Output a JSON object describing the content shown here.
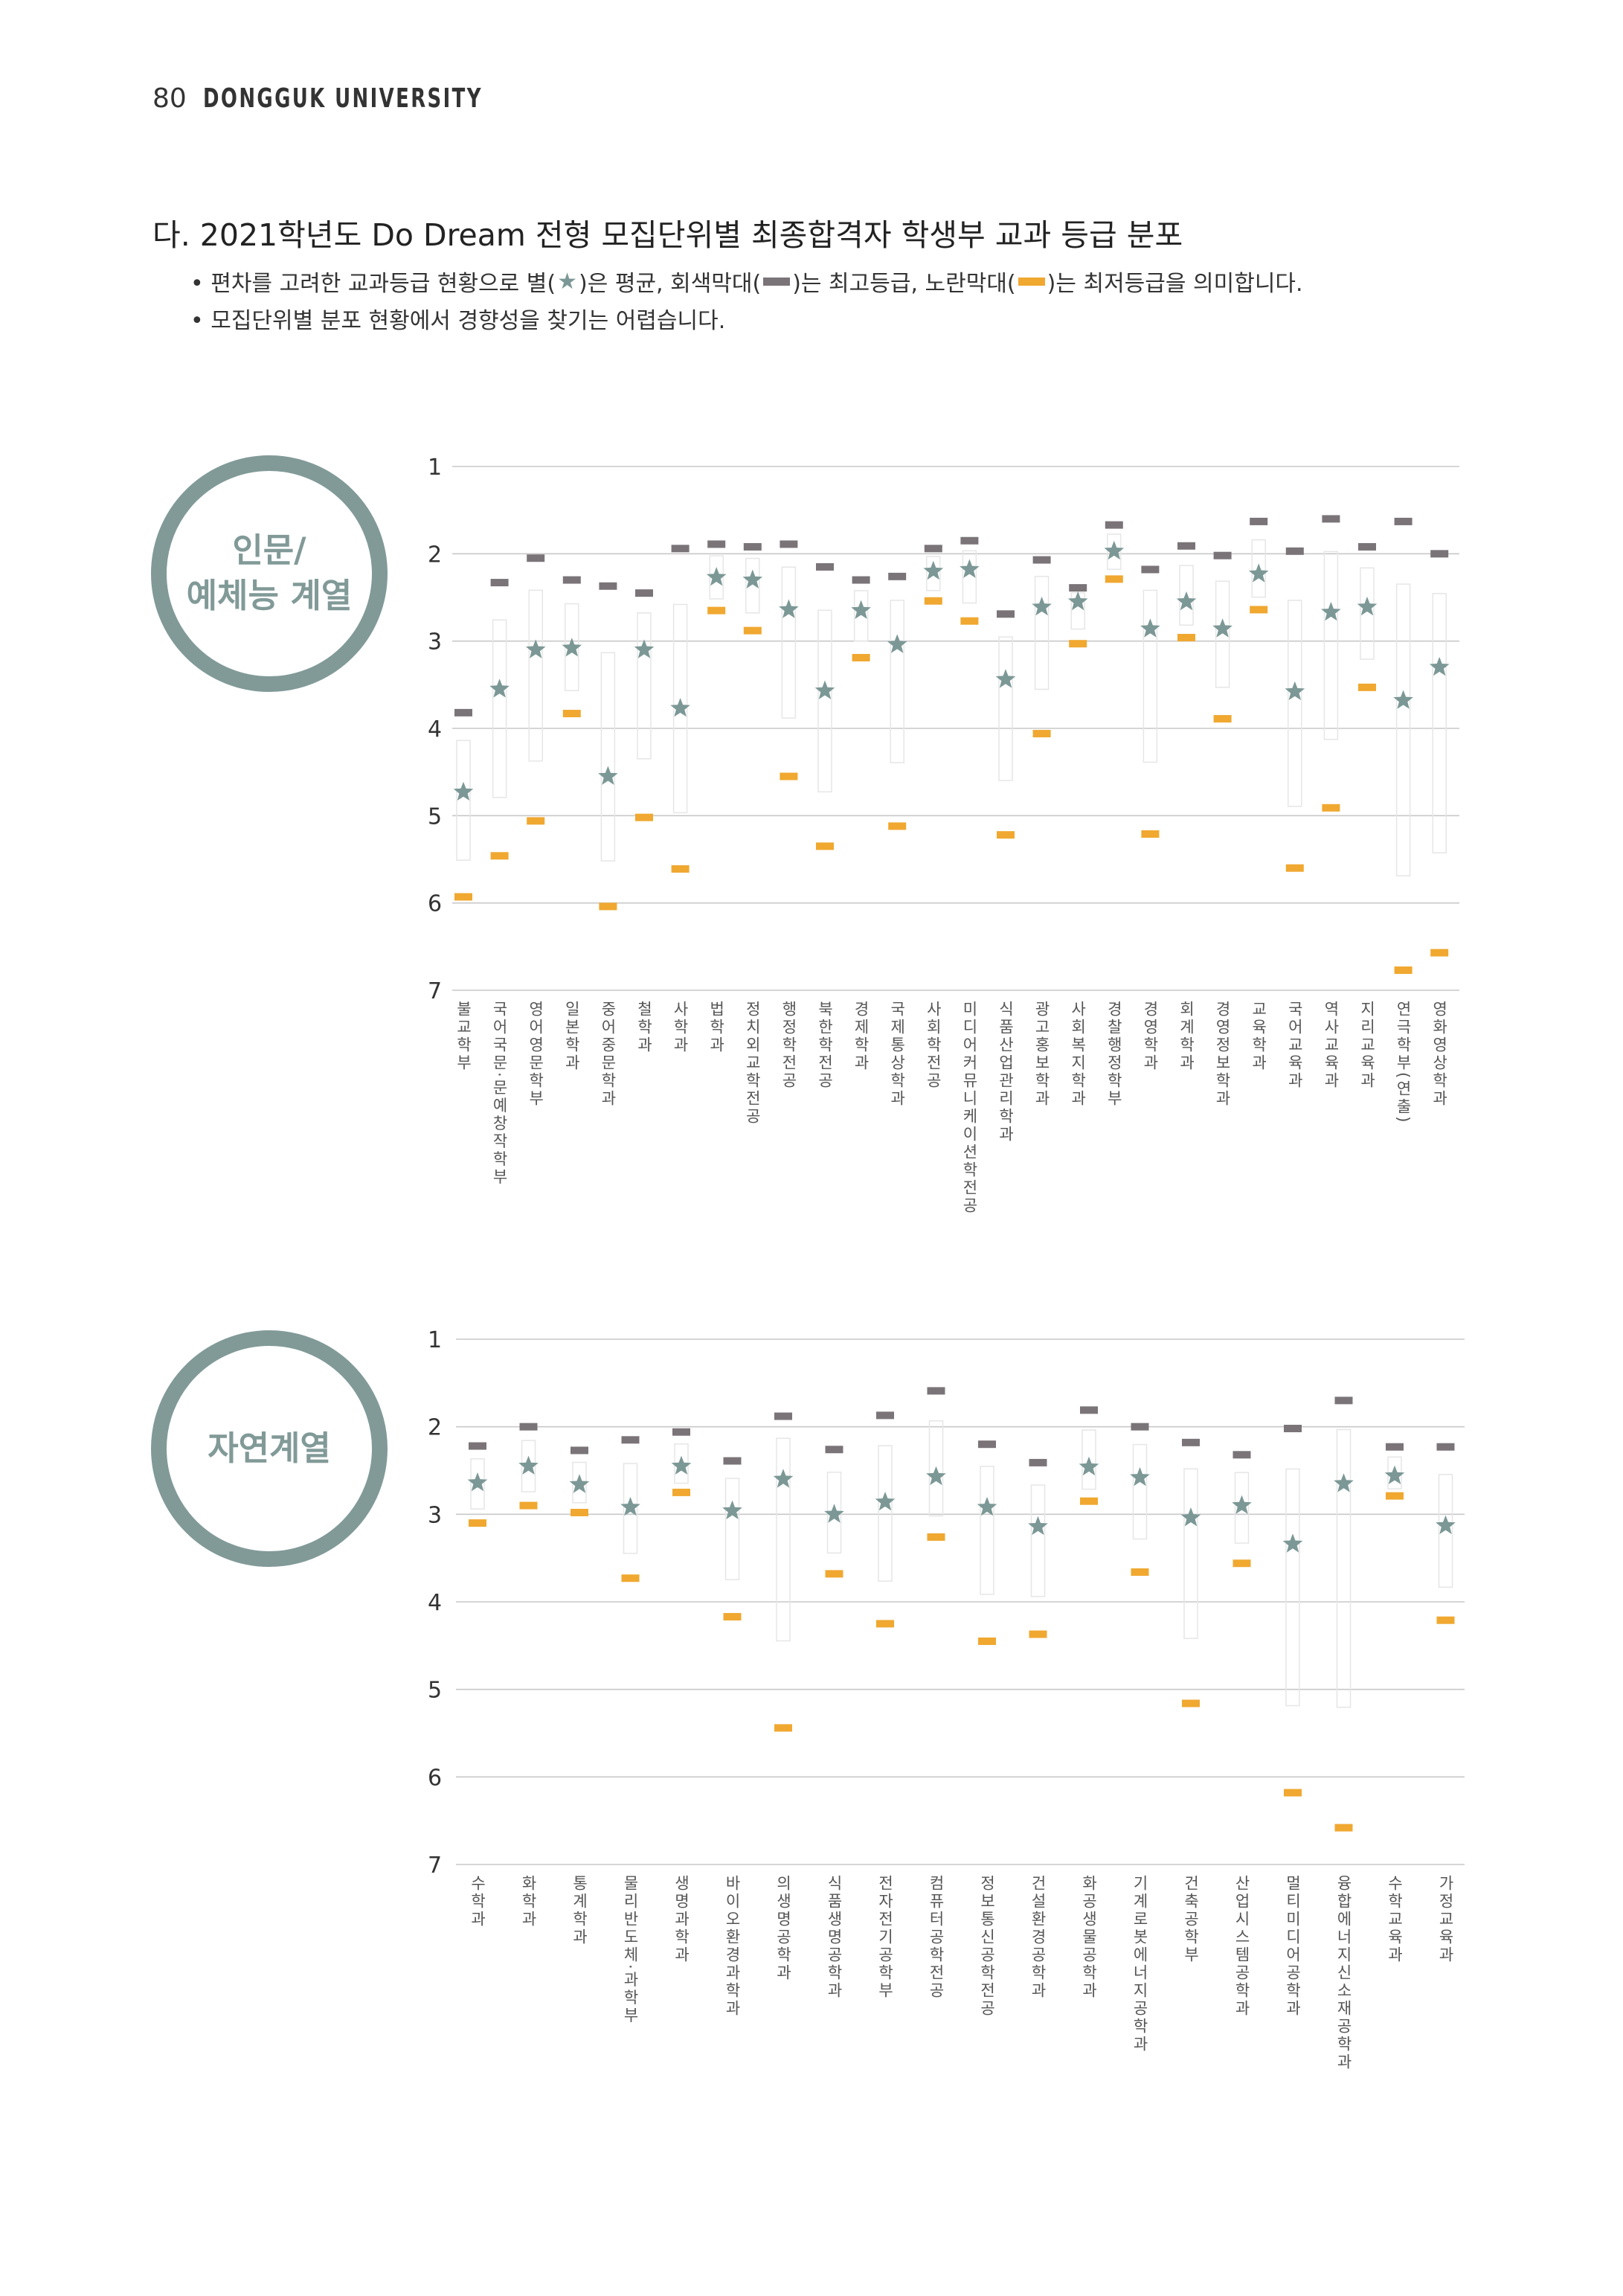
{
  "header": {
    "page_number": "80",
    "university": "DONGGUK UNIVERSITY"
  },
  "section_title": "다. 2021학년도 Do Dream 전형 모집단위별 최종합격자 학생부 교과 등급 분포",
  "bullets": {
    "b1_p1": "• 편차를 고려한 교과등급 현황으로 별(",
    "b1_p2": ")은 평균, 회색막대(",
    "b1_p3": ")는 최고등급, 노란막대(",
    "b1_p4": ")는 최저등급을 의미합니다.",
    "b2": "• 모집단위별 분포 현황에서 경향성을 찾기는 어렵습니다."
  },
  "colors": {
    "star": "#7c9896",
    "best_bar": "#7a7478",
    "worst_bar": "#f0a830",
    "circle": "#819a98",
    "grid": "#c8c8c8"
  },
  "icons": [
    "star-icon",
    "gray-bar-icon",
    "yellow-bar-icon"
  ],
  "chart_data": [
    {
      "type": "scatter",
      "label": "인문/ 예체능 계열",
      "label_lines": [
        "인문/",
        "예체능 계열"
      ],
      "yticks": [
        1,
        2,
        3,
        4,
        5,
        6,
        7
      ],
      "ylim": [
        1,
        7
      ],
      "y_inverted": true,
      "grid": true,
      "categories": [
        "불교학부",
        "국어국문·문예창작학부",
        "영어영문학부",
        "일본학과",
        "중어중문학과",
        "철학과",
        "사학과",
        "법학과",
        "정치외교학전공",
        "행정학전공",
        "북한학전공",
        "경제학과",
        "국제통상학과",
        "사회학전공",
        "미디어커뮤니케이션학전공",
        "식품산업관리학과",
        "광고홍보학과",
        "사회복지학과",
        "경찰행정학부",
        "경영학과",
        "회계학과",
        "경영정보학과",
        "교육학과",
        "국어교육과",
        "역사교육과",
        "지리교육과",
        "연극학부(연출)",
        "영화영상학과"
      ],
      "series": [
        {
          "name": "최고등급",
          "values": [
            3.82,
            2.33,
            2.05,
            2.3,
            2.37,
            2.45,
            1.94,
            1.89,
            1.92,
            1.89,
            2.15,
            2.3,
            2.26,
            1.94,
            1.85,
            2.69,
            2.07,
            2.39,
            1.67,
            2.18,
            1.91,
            2.02,
            1.63,
            1.97,
            1.6,
            1.92,
            1.63,
            2.0
          ]
        },
        {
          "name": "평균",
          "values": [
            4.73,
            3.55,
            3.1,
            3.08,
            4.55,
            3.1,
            3.77,
            2.27,
            2.3,
            2.64,
            3.57,
            2.65,
            3.04,
            2.2,
            2.18,
            3.44,
            2.61,
            2.55,
            1.97,
            2.86,
            2.55,
            2.86,
            2.23,
            3.58,
            2.67,
            2.61,
            3.68,
            3.3
          ]
        },
        {
          "name": "최저등급",
          "values": [
            5.93,
            5.46,
            5.06,
            3.83,
            6.04,
            5.02,
            5.61,
            2.65,
            2.88,
            4.55,
            5.35,
            3.19,
            5.12,
            2.54,
            2.77,
            5.22,
            4.06,
            3.03,
            2.29,
            5.21,
            2.96,
            3.89,
            2.64,
            5.6,
            4.91,
            3.53,
            6.77,
            6.57
          ]
        }
      ]
    },
    {
      "type": "scatter",
      "label": "자연계열",
      "label_lines": [
        "자연계열"
      ],
      "yticks": [
        1,
        2,
        3,
        4,
        5,
        6,
        7
      ],
      "ylim": [
        1,
        7
      ],
      "y_inverted": true,
      "grid": true,
      "categories": [
        "수학과",
        "화학과",
        "통계학과",
        "물리반도체·과학부",
        "생명과학과",
        "바이오환경과학과",
        "의생명공학과",
        "식품생명공학과",
        "전자전기공학부",
        "컴퓨터공학전공",
        "정보통신공학전공",
        "건설환경공학과",
        "화공생물공학과",
        "기계로봇에너지공학과",
        "건축공학부",
        "산업시스템공학과",
        "멀티미디어공학과",
        "융합에너지신소재공학과",
        "수학교육과",
        "가정교육과"
      ],
      "series": [
        {
          "name": "최고등급",
          "values": [
            2.22,
            2.0,
            2.27,
            2.15,
            2.06,
            2.39,
            1.88,
            2.26,
            1.87,
            1.59,
            2.2,
            2.41,
            1.81,
            2.0,
            2.18,
            2.32,
            2.02,
            1.7,
            2.23,
            2.23
          ]
        },
        {
          "name": "평균",
          "values": [
            2.64,
            2.45,
            2.66,
            2.92,
            2.45,
            2.96,
            2.6,
            3.0,
            2.86,
            2.57,
            2.92,
            3.14,
            2.46,
            2.58,
            3.04,
            2.9,
            3.34,
            2.65,
            2.56,
            3.13
          ]
        },
        {
          "name": "최저등급",
          "values": [
            3.1,
            2.9,
            2.98,
            3.73,
            2.75,
            4.17,
            5.44,
            3.68,
            4.25,
            3.26,
            4.45,
            4.37,
            2.85,
            3.66,
            5.16,
            3.56,
            6.18,
            6.58,
            2.79,
            4.21
          ]
        }
      ]
    }
  ]
}
